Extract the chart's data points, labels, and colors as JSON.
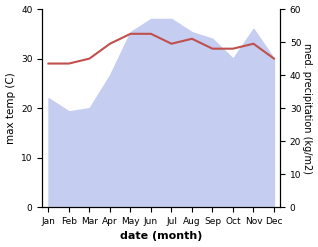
{
  "months": [
    "Jan",
    "Feb",
    "Mar",
    "Apr",
    "May",
    "Jun",
    "Jul",
    "Aug",
    "Sep",
    "Oct",
    "Nov",
    "Dec"
  ],
  "temperature": [
    29,
    29,
    30,
    33,
    35,
    35,
    33,
    34,
    32,
    32,
    33,
    30
  ],
  "precipitation": [
    33,
    29,
    30,
    40,
    53,
    57,
    57,
    53,
    51,
    45,
    54,
    45
  ],
  "temp_color": "#c0504d",
  "precip_fill_color": "#c5cdf0",
  "xlabel": "date (month)",
  "ylabel_left": "max temp (C)",
  "ylabel_right": "med. precipitation (kg/m2)",
  "ylim_left": [
    0,
    40
  ],
  "ylim_right": [
    0,
    60
  ],
  "bg_color": "#ffffff"
}
